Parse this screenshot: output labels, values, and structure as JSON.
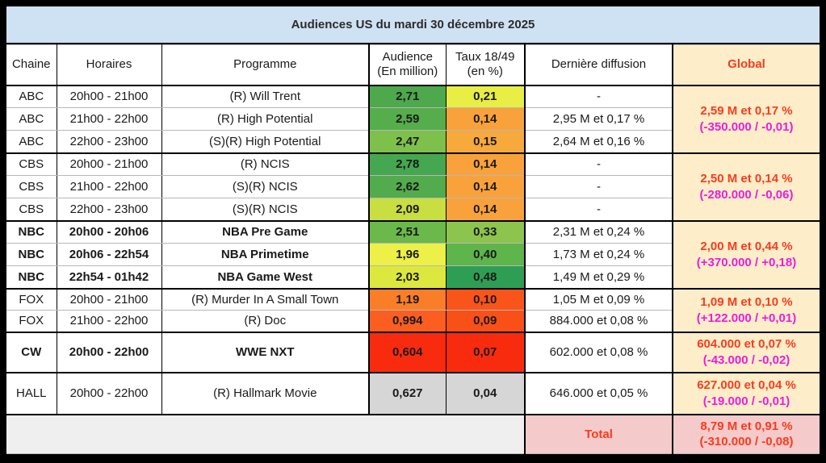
{
  "title": "Audiences US du mardi 30 décembre 2025",
  "header": {
    "chaine": "Chaine",
    "horaires": "Horaires",
    "programme": "Programme",
    "audience_l1": "Audience",
    "audience_l2": "(En million)",
    "taux_l1": "Taux 18/49",
    "taux_l2": "(en %)",
    "derniere": "Dernière diffusion",
    "global": "Global"
  },
  "colors": {
    "title_bg": "#cfe2f3",
    "global_bg": "#fdeec9",
    "total_bg": "#f4caca",
    "total_left_bg": "#efefef",
    "red": "#fb3a1e",
    "magenta": "#ed1cd8"
  },
  "groups": [
    {
      "name": "ABC",
      "global_line1": "2,59 M et 0,17 %",
      "global_line2": "(-350.000 / -0,01)",
      "rows": [
        {
          "chaine": "ABC",
          "horaires": "20h00 - 21h00",
          "programme": "(R) Will Trent",
          "audience": "2,71",
          "audience_color": "#4da94c",
          "taux": "0,21",
          "taux_color": "#e9ee44",
          "derniere": "-"
        },
        {
          "chaine": "ABC",
          "horaires": "21h00 - 22h00",
          "programme": "(R) High Potential",
          "audience": "2,59",
          "audience_color": "#55ad4b",
          "taux": "0,14",
          "taux_color": "#f9a23b",
          "derniere": "2,95 M et 0,17 %"
        },
        {
          "chaine": "ABC",
          "horaires": "22h00 - 23h00",
          "programme": "(S)(R) High Potential",
          "audience": "2,47",
          "audience_color": "#7ec04c",
          "taux": "0,15",
          "taux_color": "#f8a93c",
          "derniere": "2,64 M et 0,16 %"
        }
      ]
    },
    {
      "name": "CBS",
      "global_line1": "2,50 M et 0,14 %",
      "global_line2": "(-280.000 / -0,06)",
      "rows": [
        {
          "chaine": "CBS",
          "horaires": "20h00 - 21h00",
          "programme": "(R) NCIS",
          "audience": "2,78",
          "audience_color": "#45a750",
          "taux": "0,14",
          "taux_color": "#f9a23b",
          "derniere": "-"
        },
        {
          "chaine": "CBS",
          "horaires": "21h00 - 22h00",
          "programme": "(S)(R) NCIS",
          "audience": "2,62",
          "audience_color": "#52ab4c",
          "taux": "0,14",
          "taux_color": "#f9a23b",
          "derniere": "-"
        },
        {
          "chaine": "CBS",
          "horaires": "22h00 - 23h00",
          "programme": "(S)(R) NCIS",
          "audience": "2,09",
          "audience_color": "#c9de40",
          "taux": "0,14",
          "taux_color": "#f9a23b",
          "derniere": "-"
        }
      ]
    },
    {
      "name": "NBC",
      "bold": true,
      "global_line1": "2,00 M et 0,44 %",
      "global_line2": "(+370.000 / +0,18)",
      "rows": [
        {
          "chaine": "NBC",
          "horaires": "20h00 - 20h06",
          "programme": "NBA Pre Game",
          "audience": "2,51",
          "audience_color": "#6bb84b",
          "taux": "0,33",
          "taux_color": "#8dc44d",
          "derniere": "2,31 M et 0,24 %"
        },
        {
          "chaine": "NBC",
          "horaires": "20h06 - 22h54",
          "programme": "NBA Primetime",
          "audience": "1,96",
          "audience_color": "#edf046",
          "taux": "0,40",
          "taux_color": "#5db54b",
          "derniere": "1,73 M et 0,24 %"
        },
        {
          "chaine": "NBC",
          "horaires": "22h54 - 01h42",
          "programme": "NBA Game West",
          "audience": "2,03",
          "audience_color": "#dde83f",
          "taux": "0,48",
          "taux_color": "#2f9e55",
          "derniere": "1,49 M et 0,29 %"
        }
      ]
    },
    {
      "name": "FOX",
      "global_line1": "1,09 M et 0,10 %",
      "global_line2": "(+122.000 / +0,01)",
      "rows": [
        {
          "chaine": "FOX",
          "horaires": "20h00 - 21h00",
          "programme": "(R) Murder In A Small Town",
          "audience": "1,19",
          "audience_color": "#fa7e28",
          "taux": "0,10",
          "taux_color": "#f95419",
          "derniere": "1,05 M et 0,09 %"
        },
        {
          "chaine": "FOX",
          "horaires": "21h00 - 22h00",
          "programme": "(R) Doc",
          "audience": "0,994",
          "audience_color": "#fb5e20",
          "taux": "0,09",
          "taux_color": "#f95017",
          "derniere": "884.000 et 0,08 %"
        }
      ]
    },
    {
      "name": "CW",
      "bold": true,
      "global_line1": "604.000 et 0,07 %",
      "global_line2": "(-43.000 / -0,02)",
      "rows": [
        {
          "chaine": "CW",
          "horaires": "20h00 - 22h00",
          "programme": "WWE NXT",
          "audience": "0,604",
          "audience_color": "#f92b0e",
          "taux": "0,07",
          "taux_color": "#f92b0e",
          "derniere": "602.000 et 0,08 %"
        }
      ]
    },
    {
      "name": "HALL",
      "global_line1": "627.000 et 0,04 %",
      "global_line2": "(-19.000 / -0,01)",
      "rows": [
        {
          "chaine": "HALL",
          "horaires": "20h00 - 22h00",
          "programme": "(R) Hallmark Movie",
          "audience": "0,627",
          "audience_color": "#d6d6d6",
          "taux": "0,04",
          "taux_color": "#d6d6d6",
          "derniere": "646.000 et 0,05 %"
        }
      ]
    }
  ],
  "total": {
    "label": "Total",
    "line1": "8,79 M et 0,91 %",
    "line2": "(-310.000 / -0,08)"
  },
  "chart_data": {
    "type": "table",
    "title": "Audiences US du mardi 30 décembre 2025",
    "columns": [
      "Chaine",
      "Horaires",
      "Programme",
      "Audience (En million)",
      "Taux 18/49 (en %)",
      "Dernière diffusion",
      "Global"
    ],
    "rows": [
      [
        "ABC",
        "20h00 - 21h00",
        "(R) Will Trent",
        "2,71",
        "0,21",
        "-",
        "2,59 M et 0,17 % (-350.000 / -0,01)"
      ],
      [
        "ABC",
        "21h00 - 22h00",
        "(R) High Potential",
        "2,59",
        "0,14",
        "2,95 M et 0,17 %",
        "2,59 M et 0,17 % (-350.000 / -0,01)"
      ],
      [
        "ABC",
        "22h00 - 23h00",
        "(S)(R) High Potential",
        "2,47",
        "0,15",
        "2,64 M et 0,16 %",
        "2,59 M et 0,17 % (-350.000 / -0,01)"
      ],
      [
        "CBS",
        "20h00 - 21h00",
        "(R) NCIS",
        "2,78",
        "0,14",
        "-",
        "2,50 M et 0,14 % (-280.000 / -0,06)"
      ],
      [
        "CBS",
        "21h00 - 22h00",
        "(S)(R) NCIS",
        "2,62",
        "0,14",
        "-",
        "2,50 M et 0,14 % (-280.000 / -0,06)"
      ],
      [
        "CBS",
        "22h00 - 23h00",
        "(S)(R) NCIS",
        "2,09",
        "0,14",
        "-",
        "2,50 M et 0,14 % (-280.000 / -0,06)"
      ],
      [
        "NBC",
        "20h00 - 20h06",
        "NBA Pre Game",
        "2,51",
        "0,33",
        "2,31 M et 0,24 %",
        "2,00 M et 0,44 % (+370.000 / +0,18)"
      ],
      [
        "NBC",
        "20h06 - 22h54",
        "NBA Primetime",
        "1,96",
        "0,40",
        "1,73 M et 0,24 %",
        "2,00 M et 0,44 % (+370.000 / +0,18)"
      ],
      [
        "NBC",
        "22h54 - 01h42",
        "NBA Game West",
        "2,03",
        "0,48",
        "1,49 M et 0,29 %",
        "2,00 M et 0,44 % (+370.000 / +0,18)"
      ],
      [
        "FOX",
        "20h00 - 21h00",
        "(R) Murder In A Small Town",
        "1,19",
        "0,10",
        "1,05 M et 0,09 %",
        "1,09 M et 0,10 % (+122.000 / +0,01)"
      ],
      [
        "FOX",
        "21h00 - 22h00",
        "(R) Doc",
        "0,994",
        "0,09",
        "884.000 et 0,08 %",
        "1,09 M et 0,10 % (+122.000 / +0,01)"
      ],
      [
        "CW",
        "20h00 - 22h00",
        "WWE NXT",
        "0,604",
        "0,07",
        "602.000 et 0,08 %",
        "604.000 et 0,07 % (-43.000 / -0,02)"
      ],
      [
        "HALL",
        "20h00 - 22h00",
        "(R) Hallmark Movie",
        "0,627",
        "0,04",
        "646.000 et 0,05 %",
        "627.000 et 0,04 % (-19.000 / -0,01)"
      ],
      [
        "",
        "",
        "",
        "",
        "",
        "Total",
        "8,79 M et 0,91 % (-310.000 / -0,08)"
      ]
    ]
  }
}
